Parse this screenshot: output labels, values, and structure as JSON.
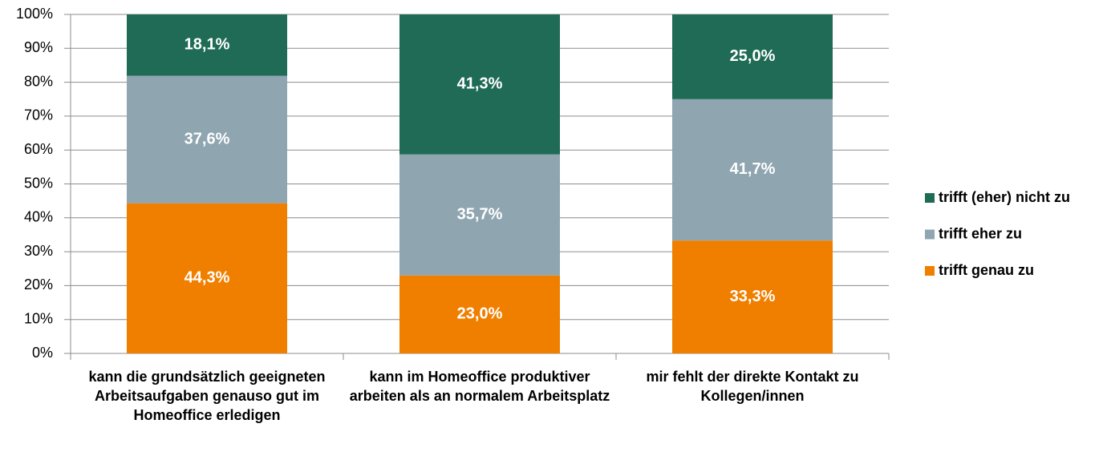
{
  "chart_data": {
    "type": "stacked_bar",
    "categories": [
      "kann die grundsätzlich geeigneten Arbeitsaufgaben genauso gut im Homeoffice erledigen",
      "kann im Homeoffice produktiver arbeiten als an normalem Arbeitsplatz",
      "mir fehlt der direkte Kontakt zu Kollegen/innen"
    ],
    "series": [
      {
        "name": "trifft genau zu",
        "color": "#f07f00",
        "values": [
          44.3,
          23.0,
          33.3
        ],
        "value_labels": [
          "44,3%",
          "23,0%",
          "33,3%"
        ]
      },
      {
        "name": "trifft eher zu",
        "color": "#8fa5b0",
        "values": [
          37.6,
          35.7,
          41.7
        ],
        "value_labels": [
          "37,6%",
          "35,7%",
          "41,7%"
        ]
      },
      {
        "name": "trifft (eher) nicht zu",
        "color": "#1f6b55",
        "values": [
          18.1,
          41.3,
          25.0
        ],
        "value_labels": [
          "18,1%",
          "41,3%",
          "25,0%"
        ]
      }
    ],
    "ylim": [
      0,
      100
    ],
    "yticks": [
      {
        "value": 0,
        "label": "0%"
      },
      {
        "value": 10,
        "label": "10%"
      },
      {
        "value": 20,
        "label": "20%"
      },
      {
        "value": 30,
        "label": "30%"
      },
      {
        "value": 40,
        "label": "40%"
      },
      {
        "value": 50,
        "label": "50%"
      },
      {
        "value": 60,
        "label": "60%"
      },
      {
        "value": 70,
        "label": "70%"
      },
      {
        "value": 80,
        "label": "80%"
      },
      {
        "value": 90,
        "label": "90%"
      },
      {
        "value": 100,
        "label": "100%"
      }
    ],
    "grid": true,
    "legend": "right"
  }
}
